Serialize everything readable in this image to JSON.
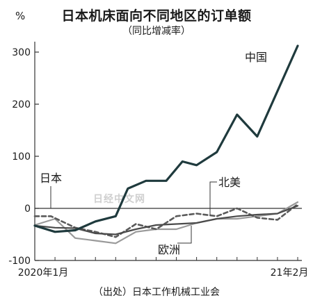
{
  "chart_data": {
    "type": "line",
    "title": "日本机床面向不同地区的订单额",
    "subtitle": "（同比增减率）",
    "unit": "%",
    "source": "（出处）日本工作机械工业会",
    "watermark": "日经中文网",
    "ylim": [
      -100,
      320
    ],
    "yticks": [
      -100,
      0,
      100,
      200,
      300
    ],
    "ytick_labels": [
      "-100",
      "0",
      "100",
      "200",
      "300"
    ],
    "xlim": [
      1,
      14
    ],
    "xtick_labels": [
      {
        "x": 1,
        "label": "2020年1月"
      },
      {
        "x": 14,
        "label": "21年2月"
      }
    ],
    "colors": {
      "china": "#1f3a3d",
      "japan": "#4a4a4a",
      "north_america": "#5a5a5a",
      "europe": "#9a9a9a",
      "zero_line": "#333333",
      "axis": "#333333"
    },
    "series": [
      {
        "name": "中国",
        "key": "china",
        "style": "solid-thick",
        "values": [
          -33,
          -45,
          -42,
          -25,
          -15,
          38,
          53,
          53,
          90,
          83,
          108,
          180,
          138,
          312
        ],
        "x": [
          1,
          2,
          3,
          4,
          5,
          5.6,
          6.5,
          7.5,
          8.3,
          9,
          10,
          11,
          12,
          14
        ]
      },
      {
        "name": "日本",
        "key": "japan",
        "style": "solid",
        "values": [
          -33,
          -37,
          -38,
          -48,
          -50,
          -40,
          -32,
          -30,
          -28,
          -20,
          -15,
          -12,
          -10,
          5
        ],
        "x": [
          1,
          2,
          3,
          4,
          5,
          6,
          7,
          8,
          9,
          10,
          11,
          12,
          13,
          14
        ]
      },
      {
        "name": "北美",
        "key": "north_america",
        "style": "dashed",
        "values": [
          -15,
          -15,
          -37,
          -45,
          -55,
          -30,
          -40,
          -15,
          -10,
          -15,
          0,
          -18,
          -22,
          8
        ],
        "x": [
          1,
          1.8,
          3,
          4,
          5,
          6,
          7,
          8,
          9,
          10,
          11,
          12,
          13,
          14
        ]
      },
      {
        "name": "欧洲",
        "key": "europe",
        "style": "solid",
        "values": [
          -32,
          -20,
          -57,
          -62,
          -67,
          -45,
          -40,
          -40,
          -28,
          -20,
          -20,
          -15,
          -10,
          12
        ],
        "x": [
          1,
          2,
          3,
          4,
          5,
          6,
          7,
          8,
          9,
          10,
          11,
          12,
          13,
          14
        ]
      }
    ],
    "labels": [
      {
        "text": "中国",
        "series": "china"
      },
      {
        "text": "日本",
        "series": "japan"
      },
      {
        "text": "北美",
        "series": "north_america"
      },
      {
        "text": "欧洲",
        "series": "europe"
      }
    ]
  }
}
